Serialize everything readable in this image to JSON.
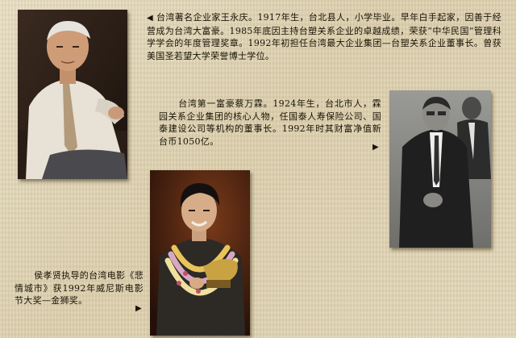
{
  "captions": {
    "wang": {
      "marker": "◀",
      "text": "台湾著名企业家王永庆。1917年生，台北县人，小学毕业。早年白手起家，因善于经营成为台湾大富豪。1985年底因主持台塑关系企业的卓越成绩，荣获“中华民国”管理科学学会的年度管理奖章。1992年初担任台湾最大企业集团—台塑关系企业董事长。曾获美国圣若望大学荣誉博士学位。"
    },
    "tsai": {
      "text": "台湾第一富豪蔡万霖。1924年生，台北市人，霖园关系企业集团的核心人物，任国泰人寿保险公司、国泰建设公司等机构的董事长。1992年时其财富净值新台币1050亿。",
      "marker": "▶"
    },
    "hou": {
      "text": "侯孝贤执导的台湾电影《悲情城市》获1992年威尼斯电影节大奖—金狮奖。",
      "marker": "▶"
    }
  },
  "colors": {
    "background": "#e4d8ba",
    "text": "#1a1408"
  }
}
